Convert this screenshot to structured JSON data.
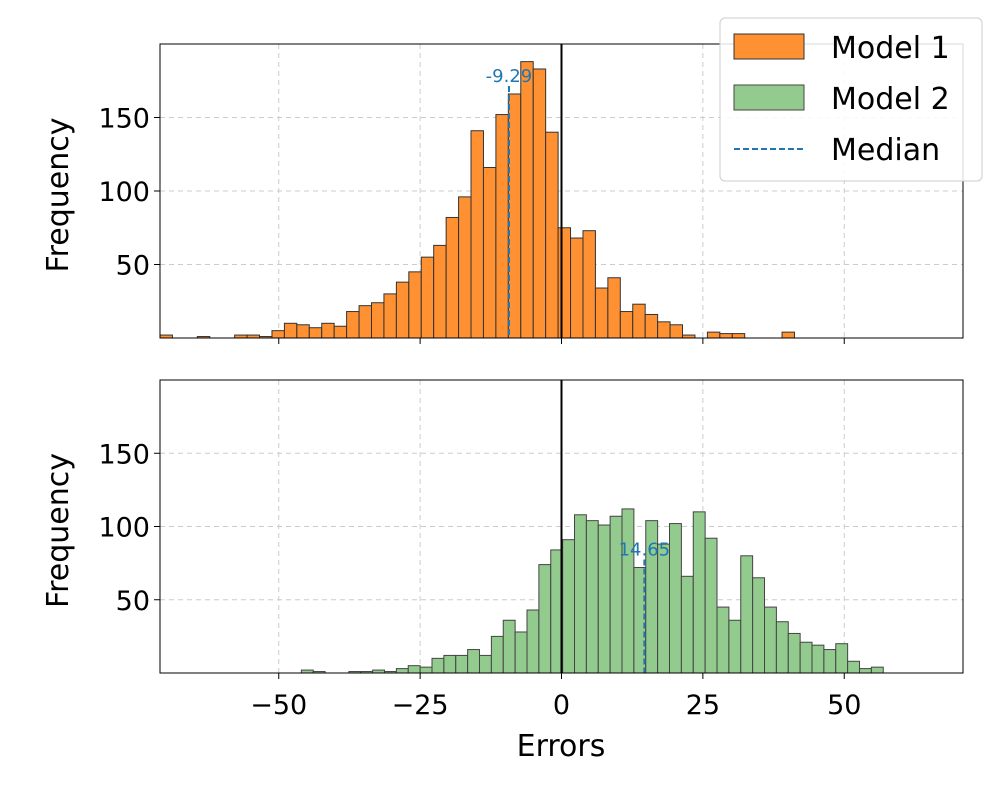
{
  "chart_data": {
    "type": "bar",
    "subplot_layout": "2 rows, shared x axis",
    "xlabel": "Errors",
    "xlim": [
      -71,
      71
    ],
    "xticks": [
      -50,
      -25,
      0,
      25,
      50
    ],
    "xtick_labels": [
      "−50",
      "−25",
      "0",
      "25",
      "50"
    ],
    "ylim": [
      0,
      200
    ],
    "yticks": [
      50,
      100,
      150
    ],
    "ytick_labels": [
      "50",
      "100",
      "150"
    ],
    "grid": true,
    "zero_line": 0,
    "legend": {
      "placement": "upper-right",
      "entries": [
        "Model 1",
        "Model 2",
        "Median"
      ]
    },
    "panels": [
      {
        "series_name": "Model 1",
        "ylabel": "Frequency",
        "color": "#ff9133",
        "edge_color": "#333333",
        "bins": [
          -71,
          -68.8,
          -66.6,
          -64.4,
          -62.2,
          -60,
          -57.8,
          -55.6,
          -53.4,
          -51.2,
          -49,
          -46.8,
          -44.6,
          -42.4,
          -40.2,
          -38,
          -35.8,
          -33.6,
          -31.4,
          -29.2,
          -27,
          -24.8,
          -22.6,
          -20.4,
          -18.2,
          -16,
          -13.8,
          -11.6,
          -9.4,
          -7.2,
          -5,
          -2.8,
          -0.6,
          1.6,
          3.8,
          6,
          8.2,
          10.4,
          12.6,
          14.8,
          17,
          19.2,
          21.4,
          23.6,
          25.8,
          28,
          30.2,
          32.4,
          34.6,
          36.8,
          39,
          41.2
        ],
        "counts": [
          2,
          0,
          0,
          1,
          0,
          0,
          2,
          2,
          1,
          5,
          10,
          9,
          7,
          10,
          8,
          18,
          22,
          24,
          30,
          38,
          45,
          55,
          63,
          82,
          96,
          141,
          116,
          152,
          166,
          188,
          183,
          140,
          75,
          68,
          73,
          34,
          41,
          18,
          23,
          16,
          11,
          9,
          2,
          0,
          4,
          3,
          3,
          0,
          0,
          0,
          4
        ],
        "median": -9.29,
        "median_label": "-9.29"
      },
      {
        "series_name": "Model 2",
        "ylabel": "Frequency",
        "color": "#93cb8e",
        "edge_color": "#444444",
        "bins": [
          -46,
          -43.9,
          -41.8,
          -39.7,
          -37.6,
          -35.5,
          -33.4,
          -31.3,
          -29.2,
          -27.1,
          -25,
          -22.9,
          -20.8,
          -18.7,
          -16.6,
          -14.5,
          -12.4,
          -10.3,
          -8.2,
          -6.1,
          -4,
          -1.9,
          0.2,
          2.3,
          4.4,
          6.5,
          8.6,
          10.7,
          12.8,
          14.9,
          17,
          19.1,
          21.2,
          23.3,
          25.4,
          27.5,
          29.6,
          31.7,
          33.8,
          35.9,
          38,
          40.1,
          42.2,
          44.3,
          46.4,
          48.5,
          50.6,
          52.7,
          54.8,
          56.9,
          59
        ],
        "counts": [
          2,
          1,
          0,
          0,
          1,
          1,
          2,
          1,
          3,
          5,
          4,
          10,
          12,
          12,
          16,
          12,
          25,
          36,
          28,
          43,
          74,
          84,
          91,
          108,
          104,
          101,
          107,
          112,
          72,
          104,
          88,
          102,
          66,
          110,
          92,
          45,
          36,
          80,
          65,
          45,
          35,
          27,
          21,
          19,
          16,
          20,
          8,
          3,
          4,
          0
        ],
        "median": 14.65,
        "median_label": "14.65"
      }
    ],
    "median_color": "#1f77b4"
  }
}
